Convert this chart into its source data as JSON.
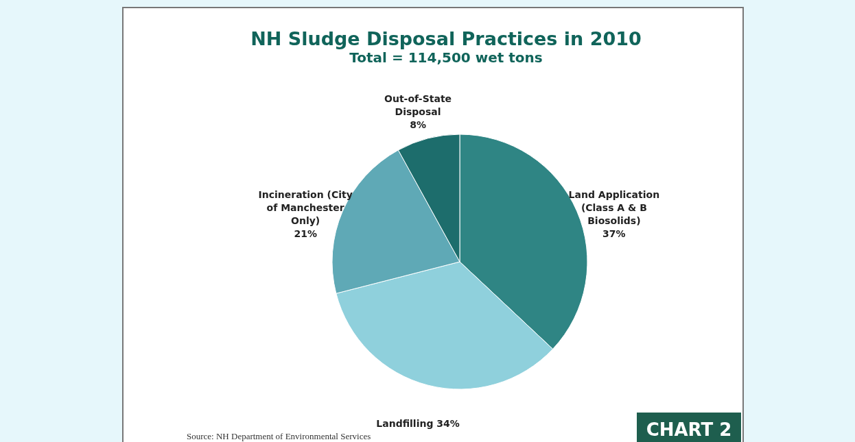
{
  "chart_data": {
    "type": "pie",
    "title": "NH Sludge Disposal Practices in 2010",
    "subtitle": "Total = 114,500 wet tons",
    "categories": [
      "Land Application (Class A & B Biosolids)",
      "Landfilling",
      "Incineration (City of Manchester Only)",
      "Out-of-State Disposal"
    ],
    "values": [
      37,
      34,
      21,
      8
    ],
    "value_labels": [
      "37%",
      "34%",
      "21%",
      "8%"
    ],
    "colors": [
      "#2f8584",
      "#8fd0dc",
      "#5fa9b6",
      "#1d6d6c"
    ],
    "annotations": [
      "Source: NH Department of Environmental Services",
      "CHART 2"
    ]
  }
}
